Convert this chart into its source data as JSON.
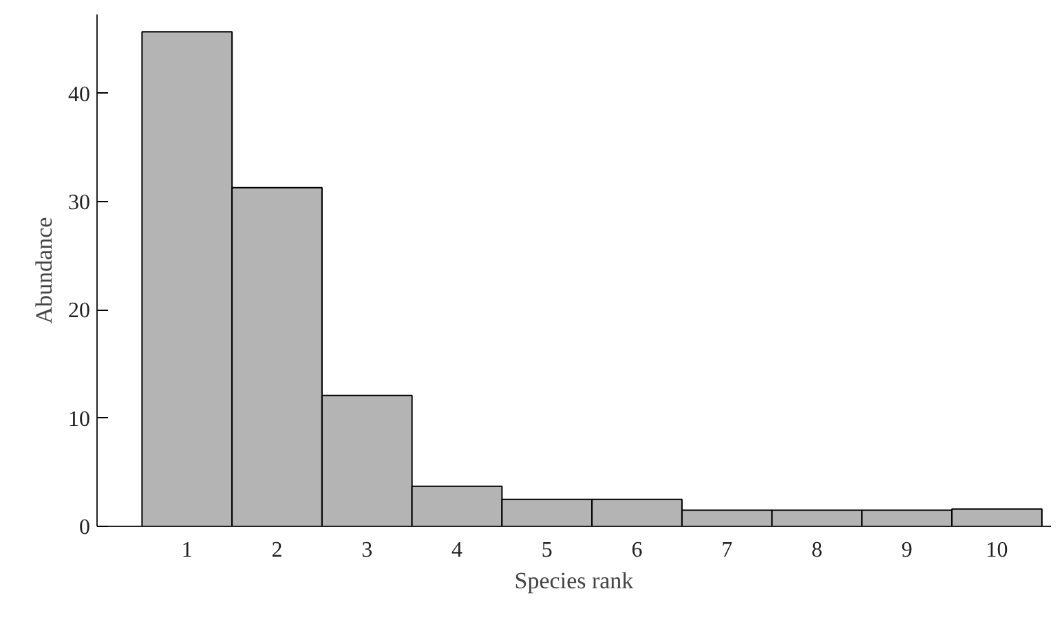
{
  "chart_data": {
    "type": "bar",
    "xlabel": "Species rank",
    "ylabel": "Abundance",
    "categories": [
      "1",
      "2",
      "3",
      "4",
      "5",
      "6",
      "7",
      "8",
      "9",
      "10"
    ],
    "values": [
      45.7,
      31.3,
      12.1,
      3.7,
      2.5,
      2.5,
      1.5,
      1.5,
      1.5,
      1.6
    ],
    "color": "#b4b4b4",
    "ylim": [
      0,
      47.3
    ],
    "yticks": [
      0,
      10,
      20,
      30,
      40
    ],
    "grid": false
  }
}
